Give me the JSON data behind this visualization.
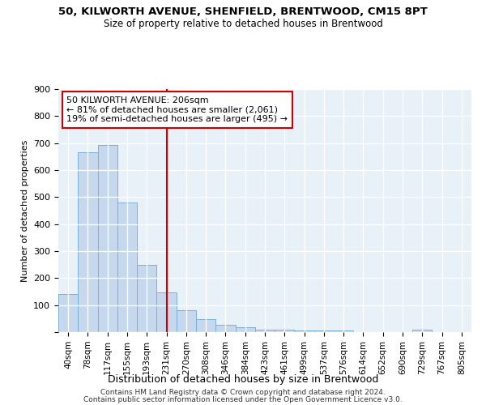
{
  "title1": "50, KILWORTH AVENUE, SHENFIELD, BRENTWOOD, CM15 8PT",
  "title2": "Size of property relative to detached houses in Brentwood",
  "xlabel": "Distribution of detached houses by size in Brentwood",
  "ylabel": "Number of detached properties",
  "bar_color": "#c5d8ed",
  "bar_edge_color": "#7bafd4",
  "bg_color": "#e8f0f8",
  "grid_color": "white",
  "categories": [
    "40sqm",
    "78sqm",
    "117sqm",
    "155sqm",
    "193sqm",
    "231sqm",
    "270sqm",
    "308sqm",
    "346sqm",
    "384sqm",
    "423sqm",
    "461sqm",
    "499sqm",
    "537sqm",
    "576sqm",
    "614sqm",
    "652sqm",
    "690sqm",
    "729sqm",
    "767sqm",
    "805sqm"
  ],
  "values": [
    140,
    667,
    693,
    480,
    248,
    148,
    82,
    48,
    28,
    18,
    10,
    10,
    5,
    5,
    5,
    0,
    0,
    0,
    10,
    0,
    0
  ],
  "vline_x": 5.0,
  "vline_color": "#cc0000",
  "annotation_text": "50 KILWORTH AVENUE: 206sqm\n← 81% of detached houses are smaller (2,061)\n19% of semi-detached houses are larger (495) →",
  "ann_box_color": "#cc0000",
  "ylim": [
    0,
    900
  ],
  "yticks": [
    0,
    100,
    200,
    300,
    400,
    500,
    600,
    700,
    800,
    900
  ],
  "footnote1": "Contains HM Land Registry data © Crown copyright and database right 2024.",
  "footnote2": "Contains public sector information licensed under the Open Government Licence v3.0."
}
